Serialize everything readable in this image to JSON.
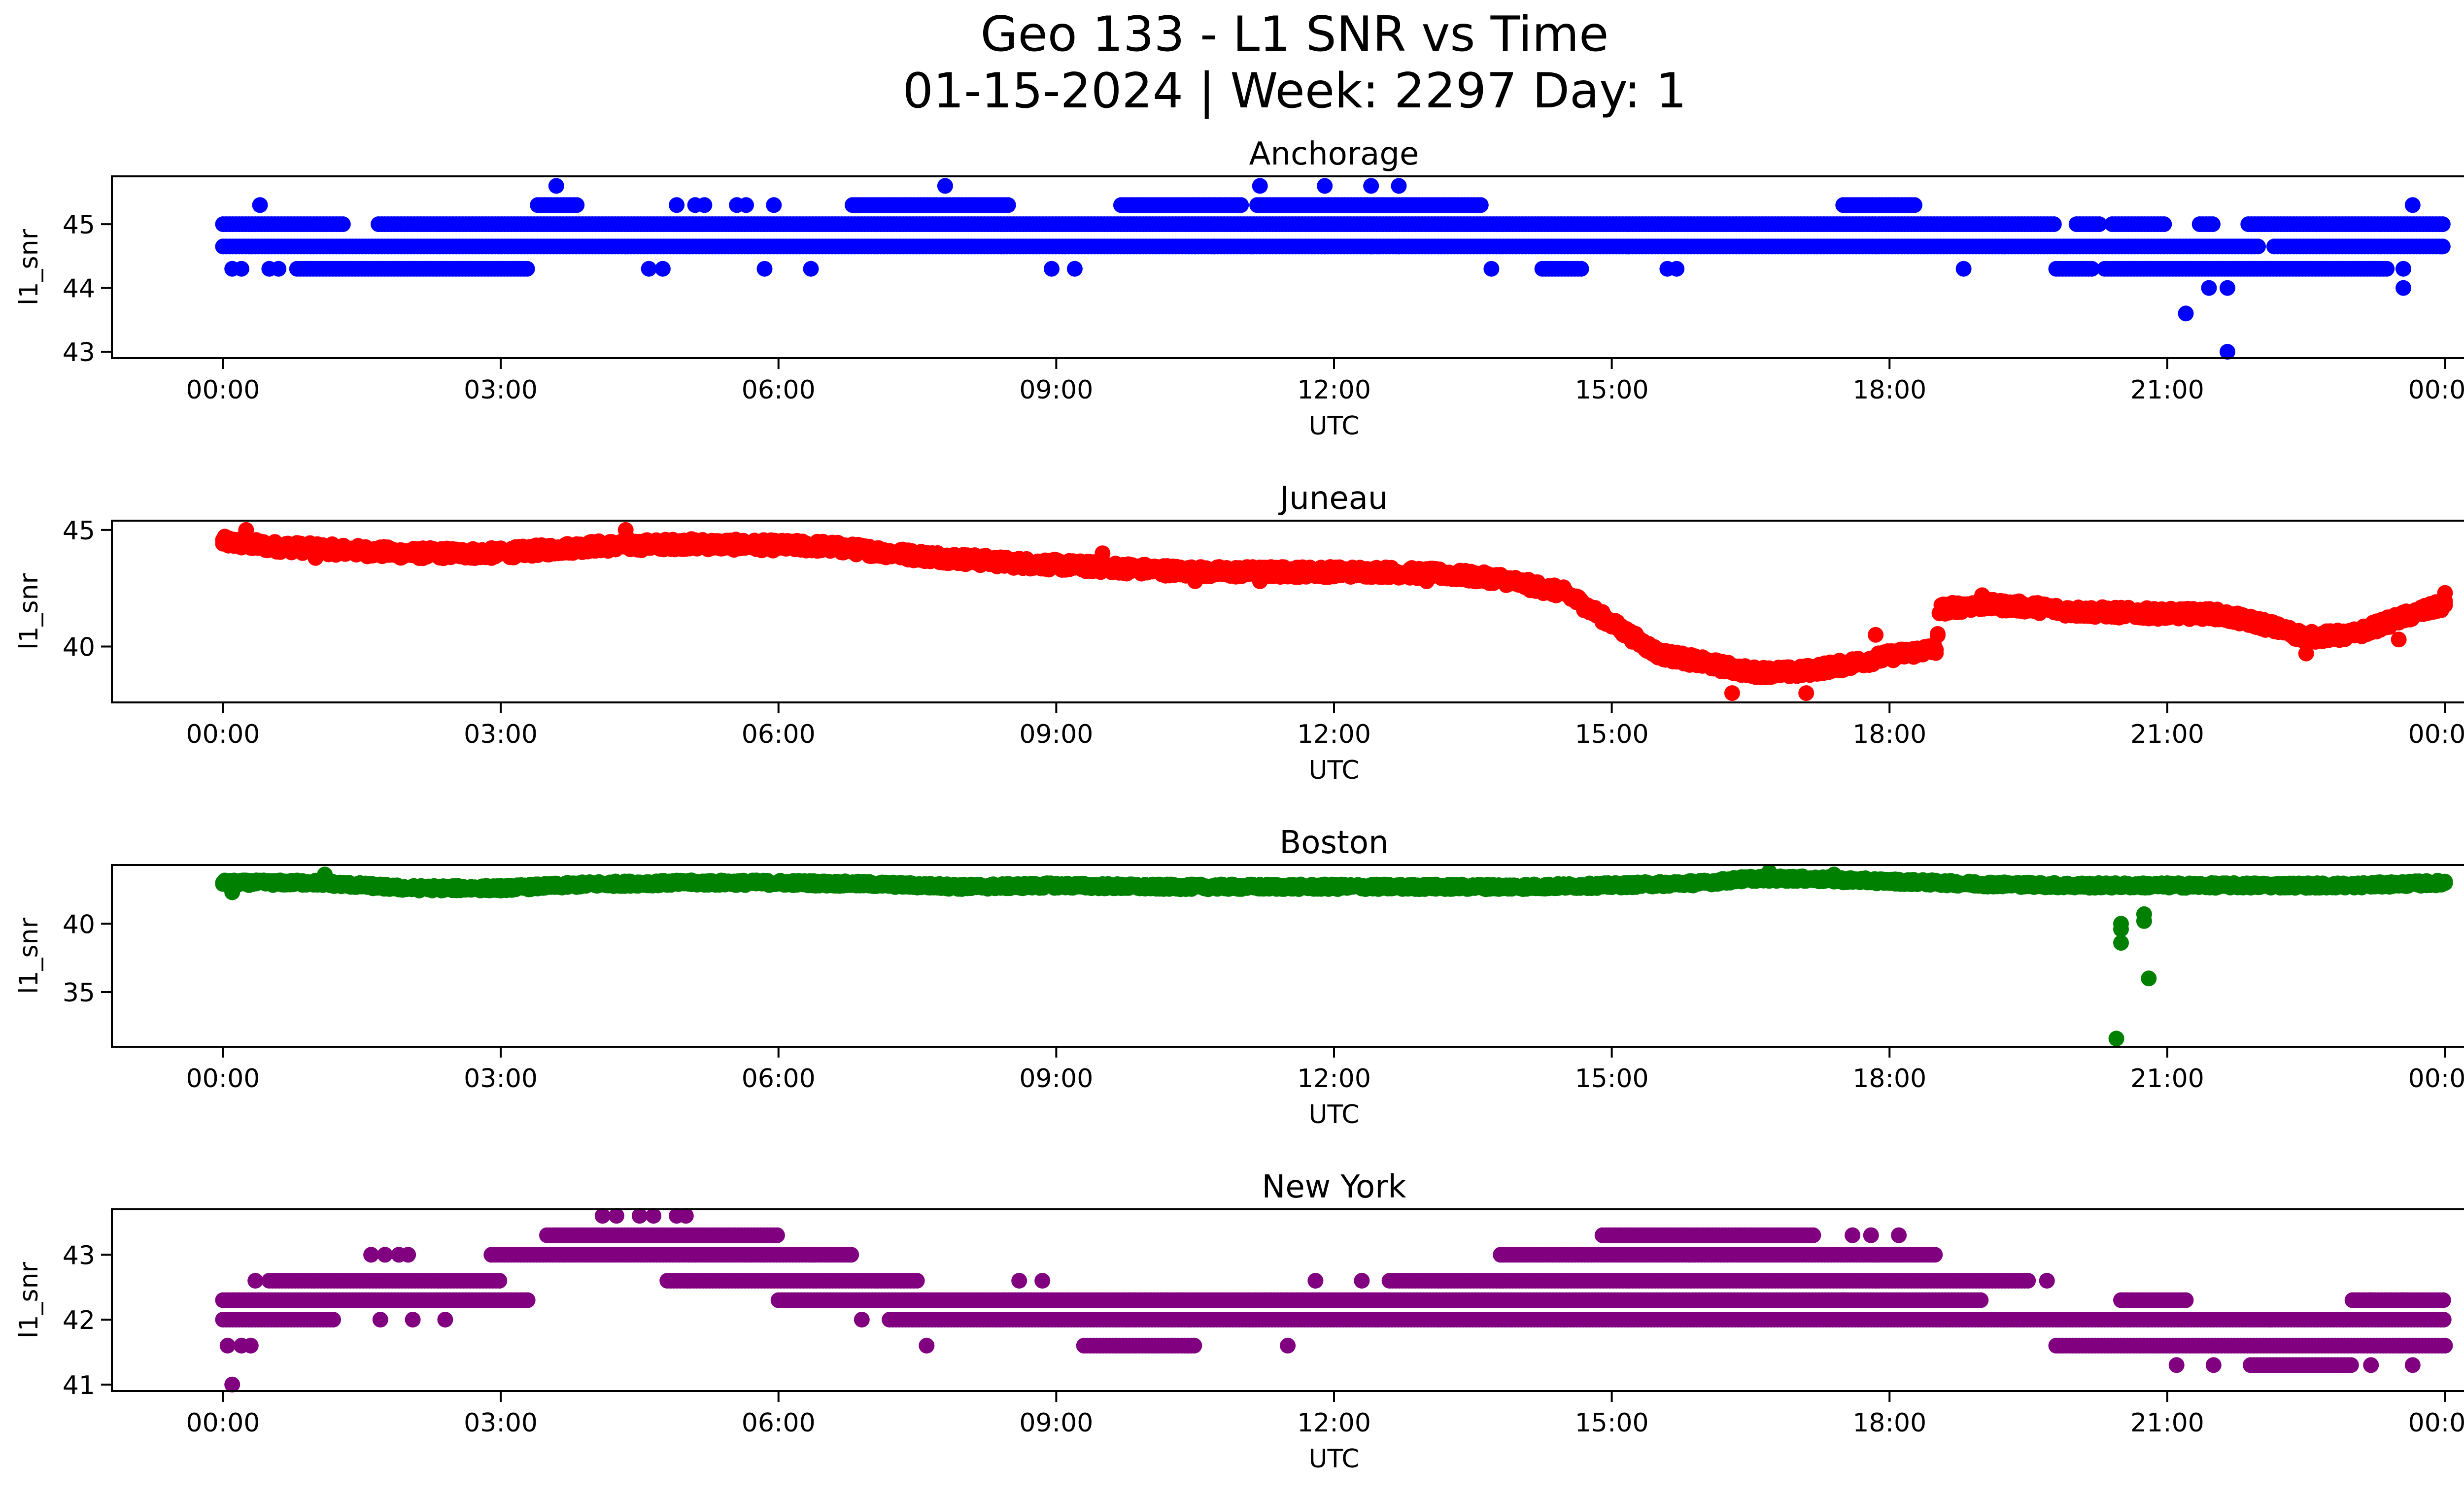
{
  "figure": {
    "title_line1": "Geo 133 - L1 SNR vs Time",
    "title_line2": "01-15-2024 | Week: 2297 Day: 1"
  },
  "chart_data": [
    {
      "type": "scatter",
      "title": "Anchorage",
      "xlabel": "UTC",
      "ylabel": "l1_snr",
      "color": "#0000ff",
      "x_ticks": [
        "00:00",
        "03:00",
        "06:00",
        "09:00",
        "12:00",
        "15:00",
        "18:00",
        "21:00",
        "00:00"
      ],
      "x_range_hours": [
        -1.2,
        25.2
      ],
      "ylim": [
        42.9,
        45.75
      ],
      "y_ticks": [
        43,
        44,
        45
      ],
      "bands": [
        {
          "y": 45.0,
          "from": 0.0,
          "to": 24.0,
          "gaps": [
            [
              1.3,
              1.65
            ],
            [
              19.8,
              20.0
            ],
            [
              20.3,
              20.4
            ],
            [
              21.0,
              21.35
            ],
            [
              21.5,
              21.85
            ]
          ]
        },
        {
          "y": 44.65,
          "from": 0.0,
          "to": 24.0,
          "gaps": [
            [
              22.0,
              22.15
            ]
          ]
        },
        {
          "y": 44.3,
          "from": 0.8,
          "to": 3.3,
          "gaps": []
        },
        {
          "y": 44.3,
          "from": 14.25,
          "to": 14.7,
          "gaps": []
        },
        {
          "y": 44.3,
          "from": 19.8,
          "to": 23.4,
          "gaps": [
            [
              20.2,
              20.3
            ]
          ]
        },
        {
          "y": 45.3,
          "from": 3.4,
          "to": 3.85,
          "gaps": []
        },
        {
          "y": 45.3,
          "from": 6.8,
          "to": 8.5,
          "gaps": []
        },
        {
          "y": 45.3,
          "from": 9.7,
          "to": 13.6,
          "gaps": [
            [
              11.0,
              11.15
            ]
          ]
        },
        {
          "y": 45.3,
          "from": 17.5,
          "to": 18.3,
          "gaps": []
        }
      ],
      "points": [
        {
          "x": 0.1,
          "y": 44.3
        },
        {
          "x": 0.2,
          "y": 44.3
        },
        {
          "x": 0.4,
          "y": 45.3
        },
        {
          "x": 0.5,
          "y": 44.3
        },
        {
          "x": 0.6,
          "y": 44.3
        },
        {
          "x": 3.6,
          "y": 45.6
        },
        {
          "x": 4.6,
          "y": 44.3
        },
        {
          "x": 4.75,
          "y": 44.3
        },
        {
          "x": 4.9,
          "y": 45.3
        },
        {
          "x": 5.1,
          "y": 45.3
        },
        {
          "x": 5.2,
          "y": 45.3
        },
        {
          "x": 5.55,
          "y": 45.3
        },
        {
          "x": 5.65,
          "y": 45.3
        },
        {
          "x": 5.85,
          "y": 44.3
        },
        {
          "x": 5.95,
          "y": 45.3
        },
        {
          "x": 6.35,
          "y": 44.3
        },
        {
          "x": 7.8,
          "y": 45.6
        },
        {
          "x": 8.95,
          "y": 44.3
        },
        {
          "x": 9.2,
          "y": 44.3
        },
        {
          "x": 10.5,
          "y": 44.65
        },
        {
          "x": 10.7,
          "y": 44.65
        },
        {
          "x": 11.2,
          "y": 45.6
        },
        {
          "x": 11.9,
          "y": 45.6
        },
        {
          "x": 11.9,
          "y": 44.65
        },
        {
          "x": 12.4,
          "y": 45.6
        },
        {
          "x": 12.4,
          "y": 44.65
        },
        {
          "x": 12.7,
          "y": 45.6
        },
        {
          "x": 12.7,
          "y": 44.65
        },
        {
          "x": 13.7,
          "y": 44.3
        },
        {
          "x": 15.6,
          "y": 44.3
        },
        {
          "x": 18.8,
          "y": 44.3
        },
        {
          "x": 21.2,
          "y": 43.6
        },
        {
          "x": 21.45,
          "y": 44.0
        },
        {
          "x": 21.65,
          "y": 44.0
        },
        {
          "x": 21.65,
          "y": 43.0
        },
        {
          "x": 23.55,
          "y": 44.0
        },
        {
          "x": 23.55,
          "y": 44.3
        },
        {
          "x": 23.65,
          "y": 45.3
        },
        {
          "x": 15.7,
          "y": 44.3
        }
      ]
    },
    {
      "type": "scatter",
      "title": "Juneau",
      "xlabel": "UTC",
      "ylabel": "l1_snr",
      "color": "#ff0000",
      "x_ticks": [
        "00:00",
        "03:00",
        "06:00",
        "09:00",
        "12:00",
        "15:00",
        "18:00",
        "21:00",
        "00:00"
      ],
      "x_range_hours": [
        -1.2,
        25.2
      ],
      "ylim": [
        37.6,
        45.4
      ],
      "y_ticks": [
        40,
        45
      ],
      "trend": [
        [
          0.0,
          44.5
        ],
        [
          0.5,
          44.3
        ],
        [
          1.0,
          44.2
        ],
        [
          2.0,
          44.0
        ],
        [
          3.0,
          44.0
        ],
        [
          4.0,
          44.3
        ],
        [
          5.0,
          44.4
        ],
        [
          6.5,
          44.3
        ],
        [
          7.5,
          43.9
        ],
        [
          8.5,
          43.6
        ],
        [
          9.5,
          43.4
        ],
        [
          10.5,
          43.2
        ],
        [
          11.5,
          43.2
        ],
        [
          12.5,
          43.2
        ],
        [
          13.2,
          43.1
        ],
        [
          13.8,
          42.9
        ],
        [
          14.5,
          42.3
        ],
        [
          15.0,
          41.0
        ],
        [
          15.5,
          39.7
        ],
        [
          16.0,
          39.3
        ],
        [
          16.5,
          38.9
        ],
        [
          17.0,
          38.9
        ],
        [
          17.5,
          39.2
        ],
        [
          18.0,
          39.6
        ],
        [
          18.5,
          39.9
        ],
        [
          18.55,
          41.6
        ],
        [
          19.0,
          41.8
        ],
        [
          19.5,
          41.7
        ],
        [
          20.0,
          41.5
        ],
        [
          21.0,
          41.4
        ],
        [
          21.5,
          41.4
        ],
        [
          22.0,
          41.0
        ],
        [
          22.5,
          40.4
        ],
        [
          23.0,
          40.5
        ],
        [
          23.5,
          41.2
        ],
        [
          24.0,
          41.8
        ]
      ],
      "spread": 0.45,
      "points": [
        {
          "x": 0.25,
          "y": 45.0
        },
        {
          "x": 1.0,
          "y": 43.8
        },
        {
          "x": 4.35,
          "y": 45.0
        },
        {
          "x": 9.2,
          "y": 43.5
        },
        {
          "x": 9.5,
          "y": 44.0
        },
        {
          "x": 10.5,
          "y": 42.8
        },
        {
          "x": 11.2,
          "y": 42.8
        },
        {
          "x": 13.0,
          "y": 42.8
        },
        {
          "x": 16.3,
          "y": 38.0
        },
        {
          "x": 17.1,
          "y": 38.0
        },
        {
          "x": 17.85,
          "y": 40.5
        },
        {
          "x": 23.5,
          "y": 40.3
        },
        {
          "x": 24.0,
          "y": 42.3
        },
        {
          "x": 19.0,
          "y": 42.2
        },
        {
          "x": 22.5,
          "y": 39.7
        }
      ]
    },
    {
      "type": "scatter",
      "title": "Boston",
      "xlabel": "UTC",
      "ylabel": "l1_snr",
      "color": "#008000",
      "x_ticks": [
        "00:00",
        "03:00",
        "06:00",
        "09:00",
        "12:00",
        "15:00",
        "18:00",
        "21:00",
        "00:00"
      ],
      "x_range_hours": [
        -1.2,
        25.2
      ],
      "ylim": [
        31.0,
        44.3
      ],
      "y_ticks": [
        35,
        40
      ],
      "trend": [
        [
          0.0,
          43.0
        ],
        [
          1.0,
          43.0
        ],
        [
          2.0,
          42.6
        ],
        [
          3.0,
          42.6
        ],
        [
          4.0,
          42.9
        ],
        [
          5.0,
          43.0
        ],
        [
          6.0,
          43.0
        ],
        [
          7.0,
          42.9
        ],
        [
          8.0,
          42.7
        ],
        [
          9.0,
          42.8
        ],
        [
          10.0,
          42.7
        ],
        [
          11.0,
          42.7
        ],
        [
          12.0,
          42.7
        ],
        [
          13.0,
          42.7
        ],
        [
          14.0,
          42.7
        ],
        [
          15.0,
          42.8
        ],
        [
          16.0,
          43.0
        ],
        [
          16.5,
          43.3
        ],
        [
          17.0,
          43.3
        ],
        [
          18.0,
          43.1
        ],
        [
          19.0,
          42.9
        ],
        [
          20.0,
          42.8
        ],
        [
          21.0,
          42.8
        ],
        [
          22.0,
          42.8
        ],
        [
          23.0,
          42.8
        ],
        [
          24.0,
          43.0
        ]
      ],
      "spread": 0.35,
      "points": [
        {
          "x": 0.1,
          "y": 42.3
        },
        {
          "x": 1.1,
          "y": 43.6
        },
        {
          "x": 20.5,
          "y": 40.0
        },
        {
          "x": 20.5,
          "y": 39.6
        },
        {
          "x": 20.5,
          "y": 38.6
        },
        {
          "x": 20.45,
          "y": 31.6
        },
        {
          "x": 20.75,
          "y": 40.7
        },
        {
          "x": 20.75,
          "y": 40.2
        },
        {
          "x": 20.8,
          "y": 36.0
        },
        {
          "x": 16.7,
          "y": 43.8
        },
        {
          "x": 17.4,
          "y": 43.6
        }
      ]
    },
    {
      "type": "scatter",
      "title": "New York",
      "xlabel": "UTC",
      "ylabel": "l1_snr",
      "color": "#800080",
      "x_ticks": [
        "00:00",
        "03:00",
        "06:00",
        "09:00",
        "12:00",
        "15:00",
        "18:00",
        "21:00",
        "00:00"
      ],
      "x_range_hours": [
        -1.2,
        25.2
      ],
      "ylim": [
        40.9,
        43.7
      ],
      "y_ticks": [
        41,
        42,
        43
      ],
      "bands": [
        {
          "y": 42.0,
          "from": 0.0,
          "to": 1.2,
          "gaps": []
        },
        {
          "y": 42.3,
          "from": 0.0,
          "to": 3.3,
          "gaps": []
        },
        {
          "y": 42.6,
          "from": 0.5,
          "to": 3.0,
          "gaps": []
        },
        {
          "y": 42.6,
          "from": 4.8,
          "to": 7.5,
          "gaps": []
        },
        {
          "y": 42.6,
          "from": 12.6,
          "to": 19.5,
          "gaps": []
        },
        {
          "y": 43.0,
          "from": 2.9,
          "to": 6.8,
          "gaps": []
        },
        {
          "y": 43.0,
          "from": 13.8,
          "to": 18.5,
          "gaps": []
        },
        {
          "y": 43.3,
          "from": 3.5,
          "to": 6.0,
          "gaps": []
        },
        {
          "y": 43.3,
          "from": 14.9,
          "to": 17.2,
          "gaps": []
        },
        {
          "y": 42.3,
          "from": 6.0,
          "to": 19.0,
          "gaps": []
        },
        {
          "y": 42.0,
          "from": 7.2,
          "to": 20.8,
          "gaps": []
        },
        {
          "y": 42.0,
          "from": 20.8,
          "to": 24.0,
          "gaps": []
        },
        {
          "y": 41.6,
          "from": 9.3,
          "to": 10.5,
          "gaps": []
        },
        {
          "y": 41.6,
          "from": 19.8,
          "to": 24.0,
          "gaps": []
        },
        {
          "y": 41.3,
          "from": 21.9,
          "to": 23.0,
          "gaps": []
        },
        {
          "y": 42.3,
          "from": 20.5,
          "to": 21.2,
          "gaps": []
        },
        {
          "y": 42.3,
          "from": 23.0,
          "to": 24.0,
          "gaps": []
        }
      ],
      "points": [
        {
          "x": 0.1,
          "y": 41.0
        },
        {
          "x": 0.05,
          "y": 41.6
        },
        {
          "x": 0.2,
          "y": 41.6
        },
        {
          "x": 0.3,
          "y": 41.6
        },
        {
          "x": 0.35,
          "y": 42.6
        },
        {
          "x": 1.6,
          "y": 43.0
        },
        {
          "x": 1.75,
          "y": 43.0
        },
        {
          "x": 1.9,
          "y": 43.0
        },
        {
          "x": 2.0,
          "y": 43.0
        },
        {
          "x": 2.4,
          "y": 42.0
        },
        {
          "x": 1.7,
          "y": 42.0
        },
        {
          "x": 2.05,
          "y": 42.0
        },
        {
          "x": 4.1,
          "y": 43.6
        },
        {
          "x": 4.25,
          "y": 43.6
        },
        {
          "x": 4.5,
          "y": 43.6
        },
        {
          "x": 4.65,
          "y": 43.6
        },
        {
          "x": 4.9,
          "y": 43.6
        },
        {
          "x": 5.0,
          "y": 43.6
        },
        {
          "x": 6.9,
          "y": 42.0
        },
        {
          "x": 7.6,
          "y": 41.6
        },
        {
          "x": 8.6,
          "y": 42.6
        },
        {
          "x": 8.85,
          "y": 42.6
        },
        {
          "x": 11.5,
          "y": 41.6
        },
        {
          "x": 11.8,
          "y": 42.6
        },
        {
          "x": 12.3,
          "y": 42.6
        },
        {
          "x": 17.5,
          "y": 42.3
        },
        {
          "x": 17.6,
          "y": 43.3
        },
        {
          "x": 17.8,
          "y": 43.3
        },
        {
          "x": 18.1,
          "y": 43.3
        },
        {
          "x": 19.7,
          "y": 42.6
        },
        {
          "x": 22.1,
          "y": 42.0
        },
        {
          "x": 22.9,
          "y": 42.0
        },
        {
          "x": 23.2,
          "y": 42.3
        },
        {
          "x": 23.65,
          "y": 41.3
        },
        {
          "x": 23.55,
          "y": 42.3
        },
        {
          "x": 21.1,
          "y": 41.3
        },
        {
          "x": 21.5,
          "y": 41.3
        },
        {
          "x": 23.2,
          "y": 41.3
        }
      ]
    }
  ]
}
